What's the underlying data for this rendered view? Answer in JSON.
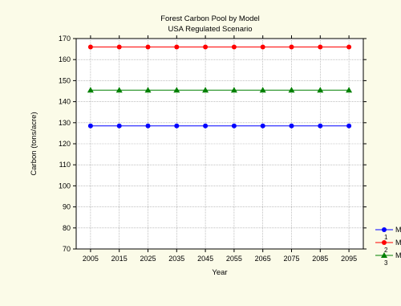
{
  "chart_data": {
    "type": "line",
    "title": "Forest Carbon Pool by Model",
    "subtitle": "USA Regulated Scenario",
    "xlabel": "Year",
    "ylabel": "Carbon (tons/acre)",
    "x": [
      2005,
      2015,
      2025,
      2035,
      2045,
      2055,
      2065,
      2075,
      2085,
      2095
    ],
    "ylim": [
      70,
      170
    ],
    "yticks": [
      70,
      80,
      90,
      100,
      110,
      120,
      130,
      140,
      150,
      160,
      170
    ],
    "grid": true,
    "legend_position": "bottom-right",
    "series": [
      {
        "name": "M",
        "legend_sub": "1",
        "color": "#0000ff",
        "marker": "circle",
        "values": [
          128.5,
          128.5,
          128.5,
          128.5,
          128.5,
          128.5,
          128.5,
          128.5,
          128.5,
          128.5
        ]
      },
      {
        "name": "M",
        "legend_sub": "2",
        "color": "#ff0000",
        "marker": "circle",
        "values": [
          166,
          166,
          166,
          166,
          166,
          166,
          166,
          166,
          166,
          166
        ]
      },
      {
        "name": "M",
        "legend_sub": "3",
        "color": "#008000",
        "marker": "triangle",
        "values": [
          145.5,
          145.5,
          145.5,
          145.5,
          145.5,
          145.5,
          145.5,
          145.5,
          145.5,
          145.5
        ]
      }
    ]
  }
}
